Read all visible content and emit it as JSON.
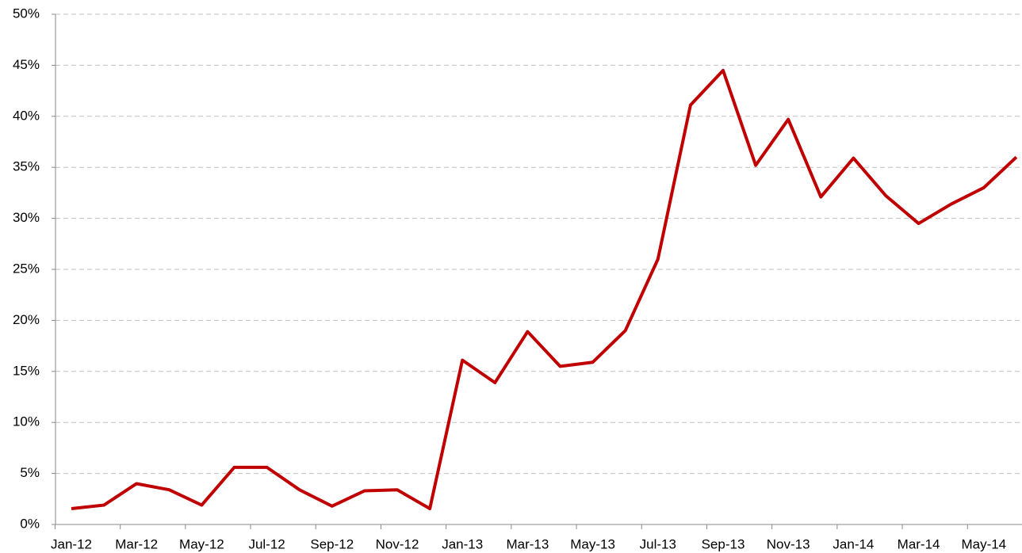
{
  "chart_data": {
    "type": "line",
    "categories": [
      "Jan-12",
      null,
      "Mar-12",
      null,
      "May-12",
      null,
      "Jul-12",
      null,
      "Sep-12",
      null,
      "Nov-12",
      null,
      "Jan-13",
      null,
      "Mar-13",
      null,
      "May-13",
      null,
      "Jul-13",
      null,
      "Sep-13",
      null,
      "Nov-13",
      null,
      "Jan-14",
      null,
      "Mar-14",
      null,
      "May-14",
      null
    ],
    "series": [
      {
        "color": "#c00000",
        "values": [
          1.55,
          1.9,
          4.0,
          3.4,
          1.9,
          5.6,
          5.6,
          3.4,
          1.8,
          3.3,
          3.4,
          1.55,
          16.1,
          13.9,
          18.9,
          15.5,
          15.9,
          19.0,
          26.0,
          41.1,
          44.5,
          35.2,
          39.7,
          32.1,
          35.9,
          32.2,
          29.5,
          31.4,
          33.0,
          36.0
        ]
      }
    ],
    "ylim": [
      0,
      50
    ],
    "yticks": [
      {
        "value": 0,
        "label": "0%"
      },
      {
        "value": 5,
        "label": "5%"
      },
      {
        "value": 10,
        "label": "10%"
      },
      {
        "value": 15,
        "label": "15%"
      },
      {
        "value": 20,
        "label": "20%"
      },
      {
        "value": 25,
        "label": "25%"
      },
      {
        "value": 30,
        "label": "30%"
      },
      {
        "value": 35,
        "label": "35%"
      },
      {
        "value": 40,
        "label": "40%"
      },
      {
        "value": 45,
        "label": "45%"
      },
      {
        "value": 50,
        "label": "50%"
      }
    ],
    "grid": true
  }
}
